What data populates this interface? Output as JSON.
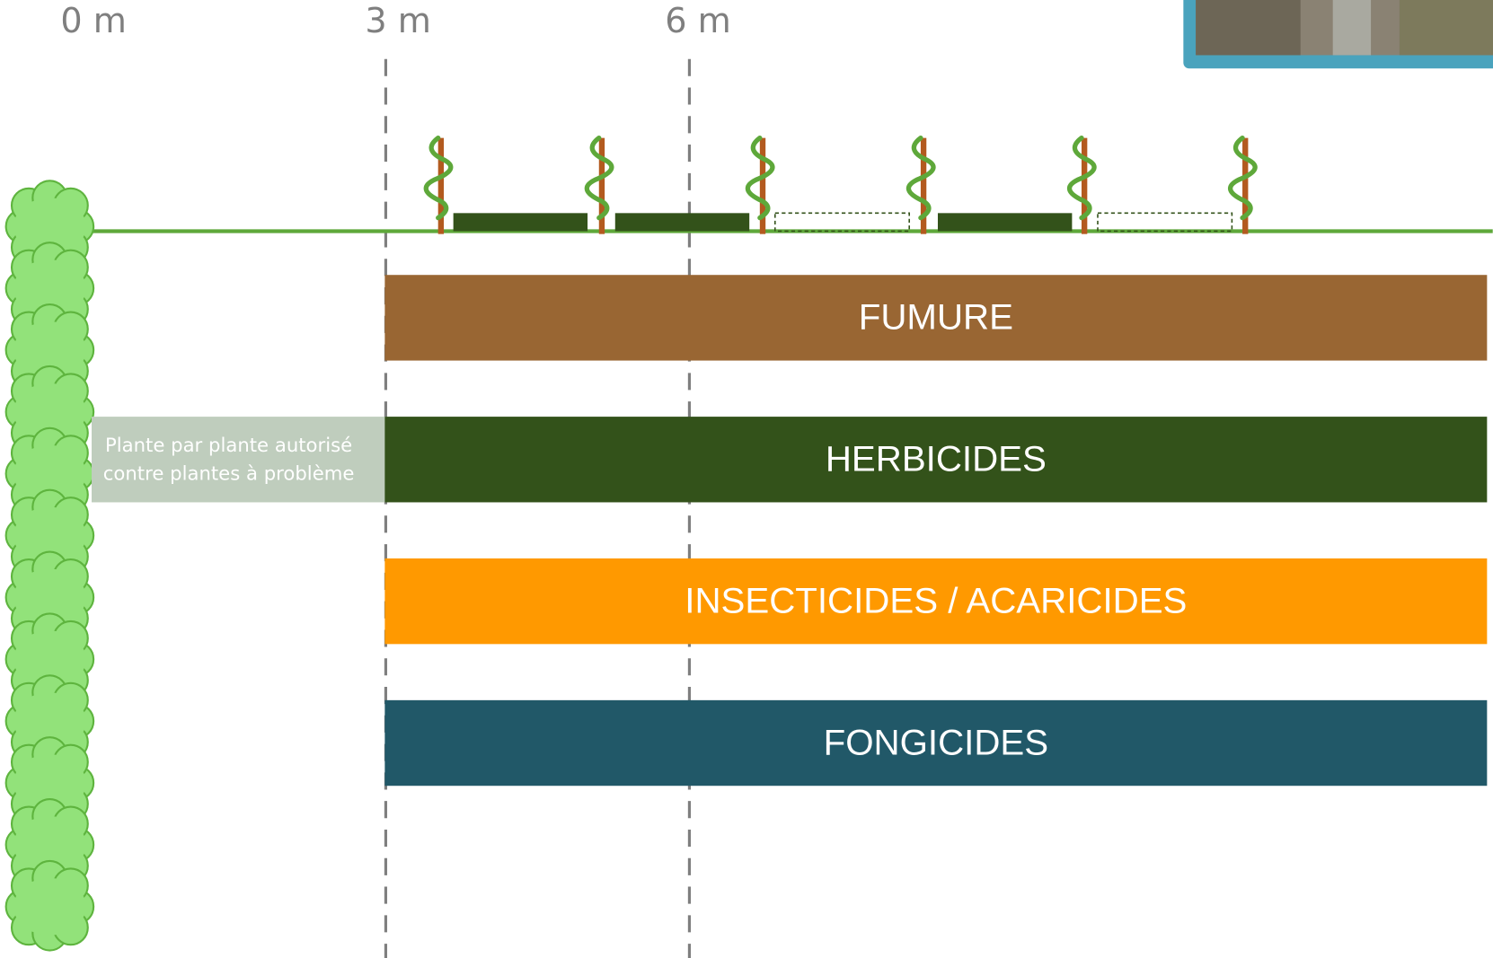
{
  "distance_labels": [
    "0 m",
    "3 m",
    "6 m"
  ],
  "bands": [
    {
      "label": "FUMURE"
    },
    {
      "label": "HERBICIDES"
    },
    {
      "label": "INSECTICIDES / ACARICIDES"
    },
    {
      "label": "FONGICIDES"
    }
  ],
  "note": {
    "lines": [
      "Plante par plante autorisé",
      "contre plantes à problème"
    ]
  }
}
